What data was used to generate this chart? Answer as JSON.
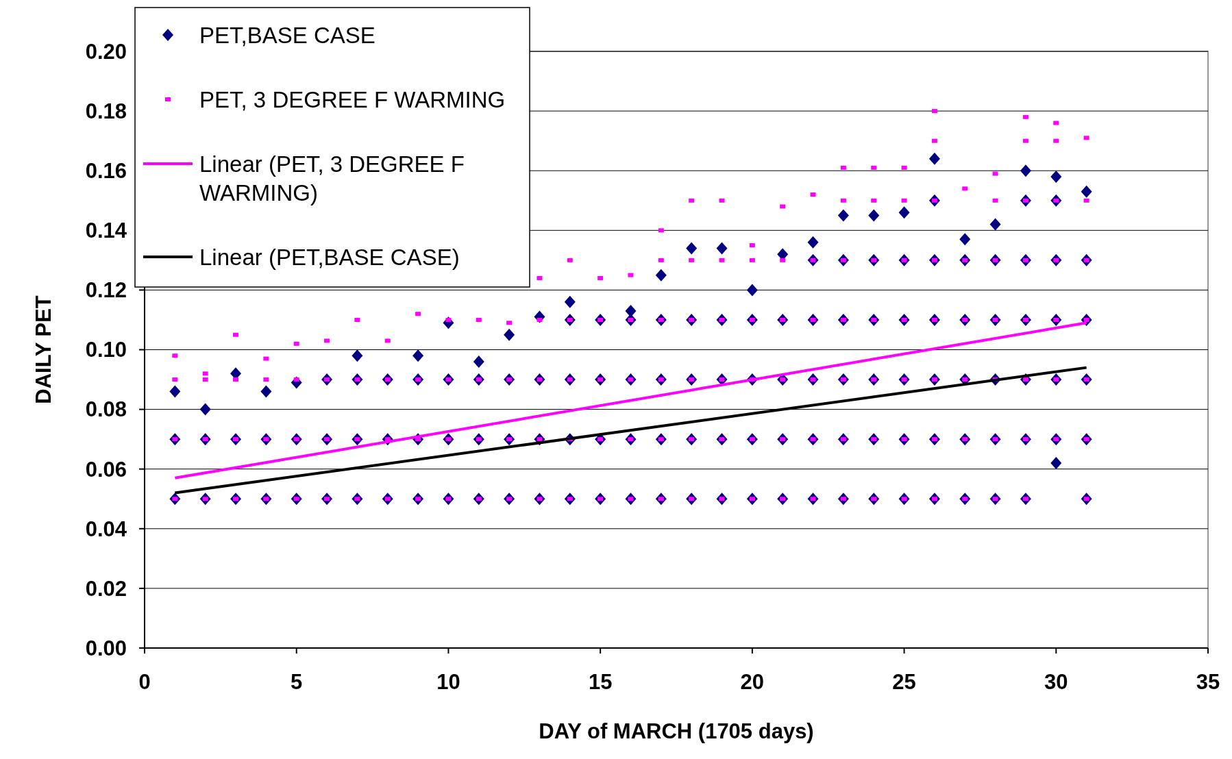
{
  "chart_data": {
    "type": "scatter",
    "xlabel": "DAY of MARCH (1705 days)",
    "ylabel": "DAILY PET",
    "xlim": [
      0,
      35
    ],
    "ylim": [
      0,
      0.2
    ],
    "xticks": [
      0,
      5,
      10,
      15,
      20,
      25,
      30,
      35
    ],
    "yticks": [
      {
        "value": 0,
        "label": "0.00"
      },
      {
        "value": 0.02,
        "label": "0.02"
      },
      {
        "value": 0.04,
        "label": "0.04"
      },
      {
        "value": 0.06,
        "label": "0.06"
      },
      {
        "value": 0.08,
        "label": "0.08"
      },
      {
        "value": 0.1,
        "label": "0.10"
      },
      {
        "value": 0.12,
        "label": "0.12"
      },
      {
        "value": 0.14,
        "label": "0.14"
      },
      {
        "value": 0.16,
        "label": "0.16"
      },
      {
        "value": 0.18,
        "label": "0.18"
      },
      {
        "value": 0.2,
        "label": "0.20"
      }
    ],
    "grid": "y",
    "legend": "top left",
    "series": [
      {
        "name": "PET,BASE CASE",
        "color": "#000080",
        "marker": "diamond",
        "x": [
          1,
          1,
          1,
          2,
          2,
          2,
          3,
          3,
          3,
          4,
          4,
          4,
          5,
          5,
          5,
          6,
          6,
          6,
          7,
          7,
          7,
          7,
          8,
          8,
          8,
          9,
          9,
          9,
          9,
          10,
          10,
          10,
          10,
          11,
          11,
          11,
          11,
          12,
          12,
          12,
          12,
          13,
          13,
          13,
          13,
          14,
          14,
          14,
          14,
          14,
          15,
          15,
          15,
          15,
          16,
          16,
          16,
          16,
          16,
          17,
          17,
          17,
          17,
          17,
          18,
          18,
          18,
          18,
          18,
          19,
          19,
          19,
          19,
          19,
          20,
          20,
          20,
          20,
          20,
          21,
          21,
          21,
          21,
          21,
          22,
          22,
          22,
          22,
          22,
          22,
          23,
          23,
          23,
          23,
          23,
          23,
          24,
          24,
          24,
          24,
          24,
          24,
          25,
          25,
          25,
          25,
          25,
          25,
          26,
          26,
          26,
          26,
          26,
          26,
          26,
          27,
          27,
          27,
          27,
          27,
          27,
          28,
          28,
          28,
          28,
          28,
          28,
          29,
          29,
          29,
          29,
          29,
          29,
          29,
          30,
          30,
          30,
          30,
          30,
          30,
          30,
          31,
          31,
          31,
          31,
          31,
          31
        ],
        "values": [
          0.05,
          0.07,
          0.086,
          0.05,
          0.07,
          0.08,
          0.05,
          0.07,
          0.092,
          0.05,
          0.07,
          0.086,
          0.05,
          0.07,
          0.089,
          0.05,
          0.07,
          0.09,
          0.05,
          0.07,
          0.09,
          0.098,
          0.05,
          0.07,
          0.09,
          0.05,
          0.07,
          0.09,
          0.098,
          0.05,
          0.07,
          0.09,
          0.109,
          0.05,
          0.07,
          0.09,
          0.096,
          0.05,
          0.07,
          0.09,
          0.105,
          0.05,
          0.07,
          0.09,
          0.111,
          0.05,
          0.07,
          0.09,
          0.11,
          0.116,
          0.05,
          0.07,
          0.09,
          0.11,
          0.05,
          0.07,
          0.09,
          0.11,
          0.113,
          0.05,
          0.07,
          0.09,
          0.11,
          0.125,
          0.05,
          0.07,
          0.09,
          0.11,
          0.134,
          0.05,
          0.07,
          0.09,
          0.11,
          0.134,
          0.05,
          0.07,
          0.09,
          0.11,
          0.12,
          0.05,
          0.07,
          0.09,
          0.11,
          0.132,
          0.05,
          0.07,
          0.09,
          0.11,
          0.13,
          0.136,
          0.05,
          0.07,
          0.09,
          0.11,
          0.13,
          0.145,
          0.05,
          0.07,
          0.09,
          0.11,
          0.13,
          0.145,
          0.05,
          0.07,
          0.09,
          0.11,
          0.13,
          0.146,
          0.05,
          0.07,
          0.09,
          0.11,
          0.13,
          0.15,
          0.164,
          0.05,
          0.07,
          0.09,
          0.11,
          0.13,
          0.137,
          0.05,
          0.07,
          0.09,
          0.11,
          0.13,
          0.142,
          0.05,
          0.07,
          0.09,
          0.11,
          0.13,
          0.15,
          0.16,
          0.062,
          0.07,
          0.09,
          0.11,
          0.13,
          0.15,
          0.158,
          0.05,
          0.07,
          0.09,
          0.11,
          0.13,
          0.153
        ]
      },
      {
        "name": "PET, 3 DEGREE F WARMING",
        "color": "#ff00ff",
        "marker": "square",
        "x": [
          1,
          1,
          1,
          1,
          2,
          2,
          2,
          2,
          3,
          3,
          3,
          3,
          4,
          4,
          4,
          4,
          5,
          5,
          5,
          5,
          6,
          6,
          6,
          6,
          7,
          7,
          7,
          7,
          8,
          8,
          8,
          8,
          9,
          9,
          9,
          9,
          10,
          10,
          10,
          10,
          11,
          11,
          11,
          11,
          12,
          12,
          12,
          12,
          13,
          13,
          13,
          13,
          13,
          14,
          14,
          14,
          14,
          14,
          15,
          15,
          15,
          15,
          15,
          16,
          16,
          16,
          16,
          16,
          17,
          17,
          17,
          17,
          17,
          17,
          18,
          18,
          18,
          18,
          18,
          18,
          19,
          19,
          19,
          19,
          19,
          19,
          20,
          20,
          20,
          20,
          20,
          20,
          21,
          21,
          21,
          21,
          21,
          21,
          22,
          22,
          22,
          22,
          22,
          22,
          23,
          23,
          23,
          23,
          23,
          23,
          23,
          24,
          24,
          24,
          24,
          24,
          24,
          24,
          25,
          25,
          25,
          25,
          25,
          25,
          25,
          26,
          26,
          26,
          26,
          26,
          26,
          26,
          26,
          27,
          27,
          27,
          27,
          27,
          27,
          28,
          28,
          28,
          28,
          28,
          28,
          28,
          29,
          29,
          29,
          29,
          29,
          29,
          29,
          29,
          30,
          30,
          30,
          30,
          30,
          30,
          30,
          31,
          31,
          31,
          31,
          31,
          31,
          31
        ],
        "values": [
          0.05,
          0.07,
          0.09,
          0.098,
          0.05,
          0.07,
          0.09,
          0.092,
          0.05,
          0.07,
          0.09,
          0.105,
          0.05,
          0.07,
          0.09,
          0.097,
          0.05,
          0.07,
          0.09,
          0.102,
          0.05,
          0.07,
          0.09,
          0.103,
          0.05,
          0.07,
          0.09,
          0.11,
          0.05,
          0.07,
          0.09,
          0.103,
          0.05,
          0.07,
          0.09,
          0.112,
          0.05,
          0.07,
          0.09,
          0.11,
          0.05,
          0.07,
          0.09,
          0.11,
          0.05,
          0.07,
          0.09,
          0.109,
          0.05,
          0.07,
          0.09,
          0.11,
          0.124,
          0.05,
          0.07,
          0.09,
          0.11,
          0.13,
          0.05,
          0.07,
          0.09,
          0.11,
          0.124,
          0.05,
          0.07,
          0.09,
          0.11,
          0.125,
          0.05,
          0.07,
          0.09,
          0.11,
          0.13,
          0.14,
          0.05,
          0.07,
          0.09,
          0.11,
          0.13,
          0.15,
          0.05,
          0.07,
          0.09,
          0.11,
          0.13,
          0.15,
          0.05,
          0.07,
          0.09,
          0.11,
          0.13,
          0.135,
          0.05,
          0.07,
          0.09,
          0.11,
          0.13,
          0.148,
          0.05,
          0.07,
          0.09,
          0.11,
          0.13,
          0.152,
          0.05,
          0.07,
          0.09,
          0.11,
          0.13,
          0.15,
          0.161,
          0.05,
          0.07,
          0.09,
          0.11,
          0.13,
          0.15,
          0.161,
          0.05,
          0.07,
          0.09,
          0.11,
          0.13,
          0.15,
          0.161,
          0.05,
          0.07,
          0.09,
          0.11,
          0.13,
          0.15,
          0.17,
          0.18,
          0.05,
          0.07,
          0.09,
          0.11,
          0.13,
          0.154,
          0.05,
          0.07,
          0.09,
          0.11,
          0.13,
          0.15,
          0.159,
          0.05,
          0.07,
          0.09,
          0.11,
          0.13,
          0.15,
          0.17,
          0.178,
          0.07,
          0.09,
          0.11,
          0.13,
          0.15,
          0.17,
          0.176,
          0.05,
          0.07,
          0.09,
          0.11,
          0.13,
          0.15,
          0.171
        ]
      },
      {
        "name": "Linear (PET, 3 DEGREE F WARMING)",
        "type": "line",
        "color": "#ff00ff",
        "x": [
          1,
          31
        ],
        "values": [
          0.057,
          0.109
        ]
      },
      {
        "name": "Linear (PET,BASE CASE)",
        "type": "line",
        "color": "#000000",
        "x": [
          1,
          31
        ],
        "values": [
          0.052,
          0.094
        ]
      }
    ]
  }
}
